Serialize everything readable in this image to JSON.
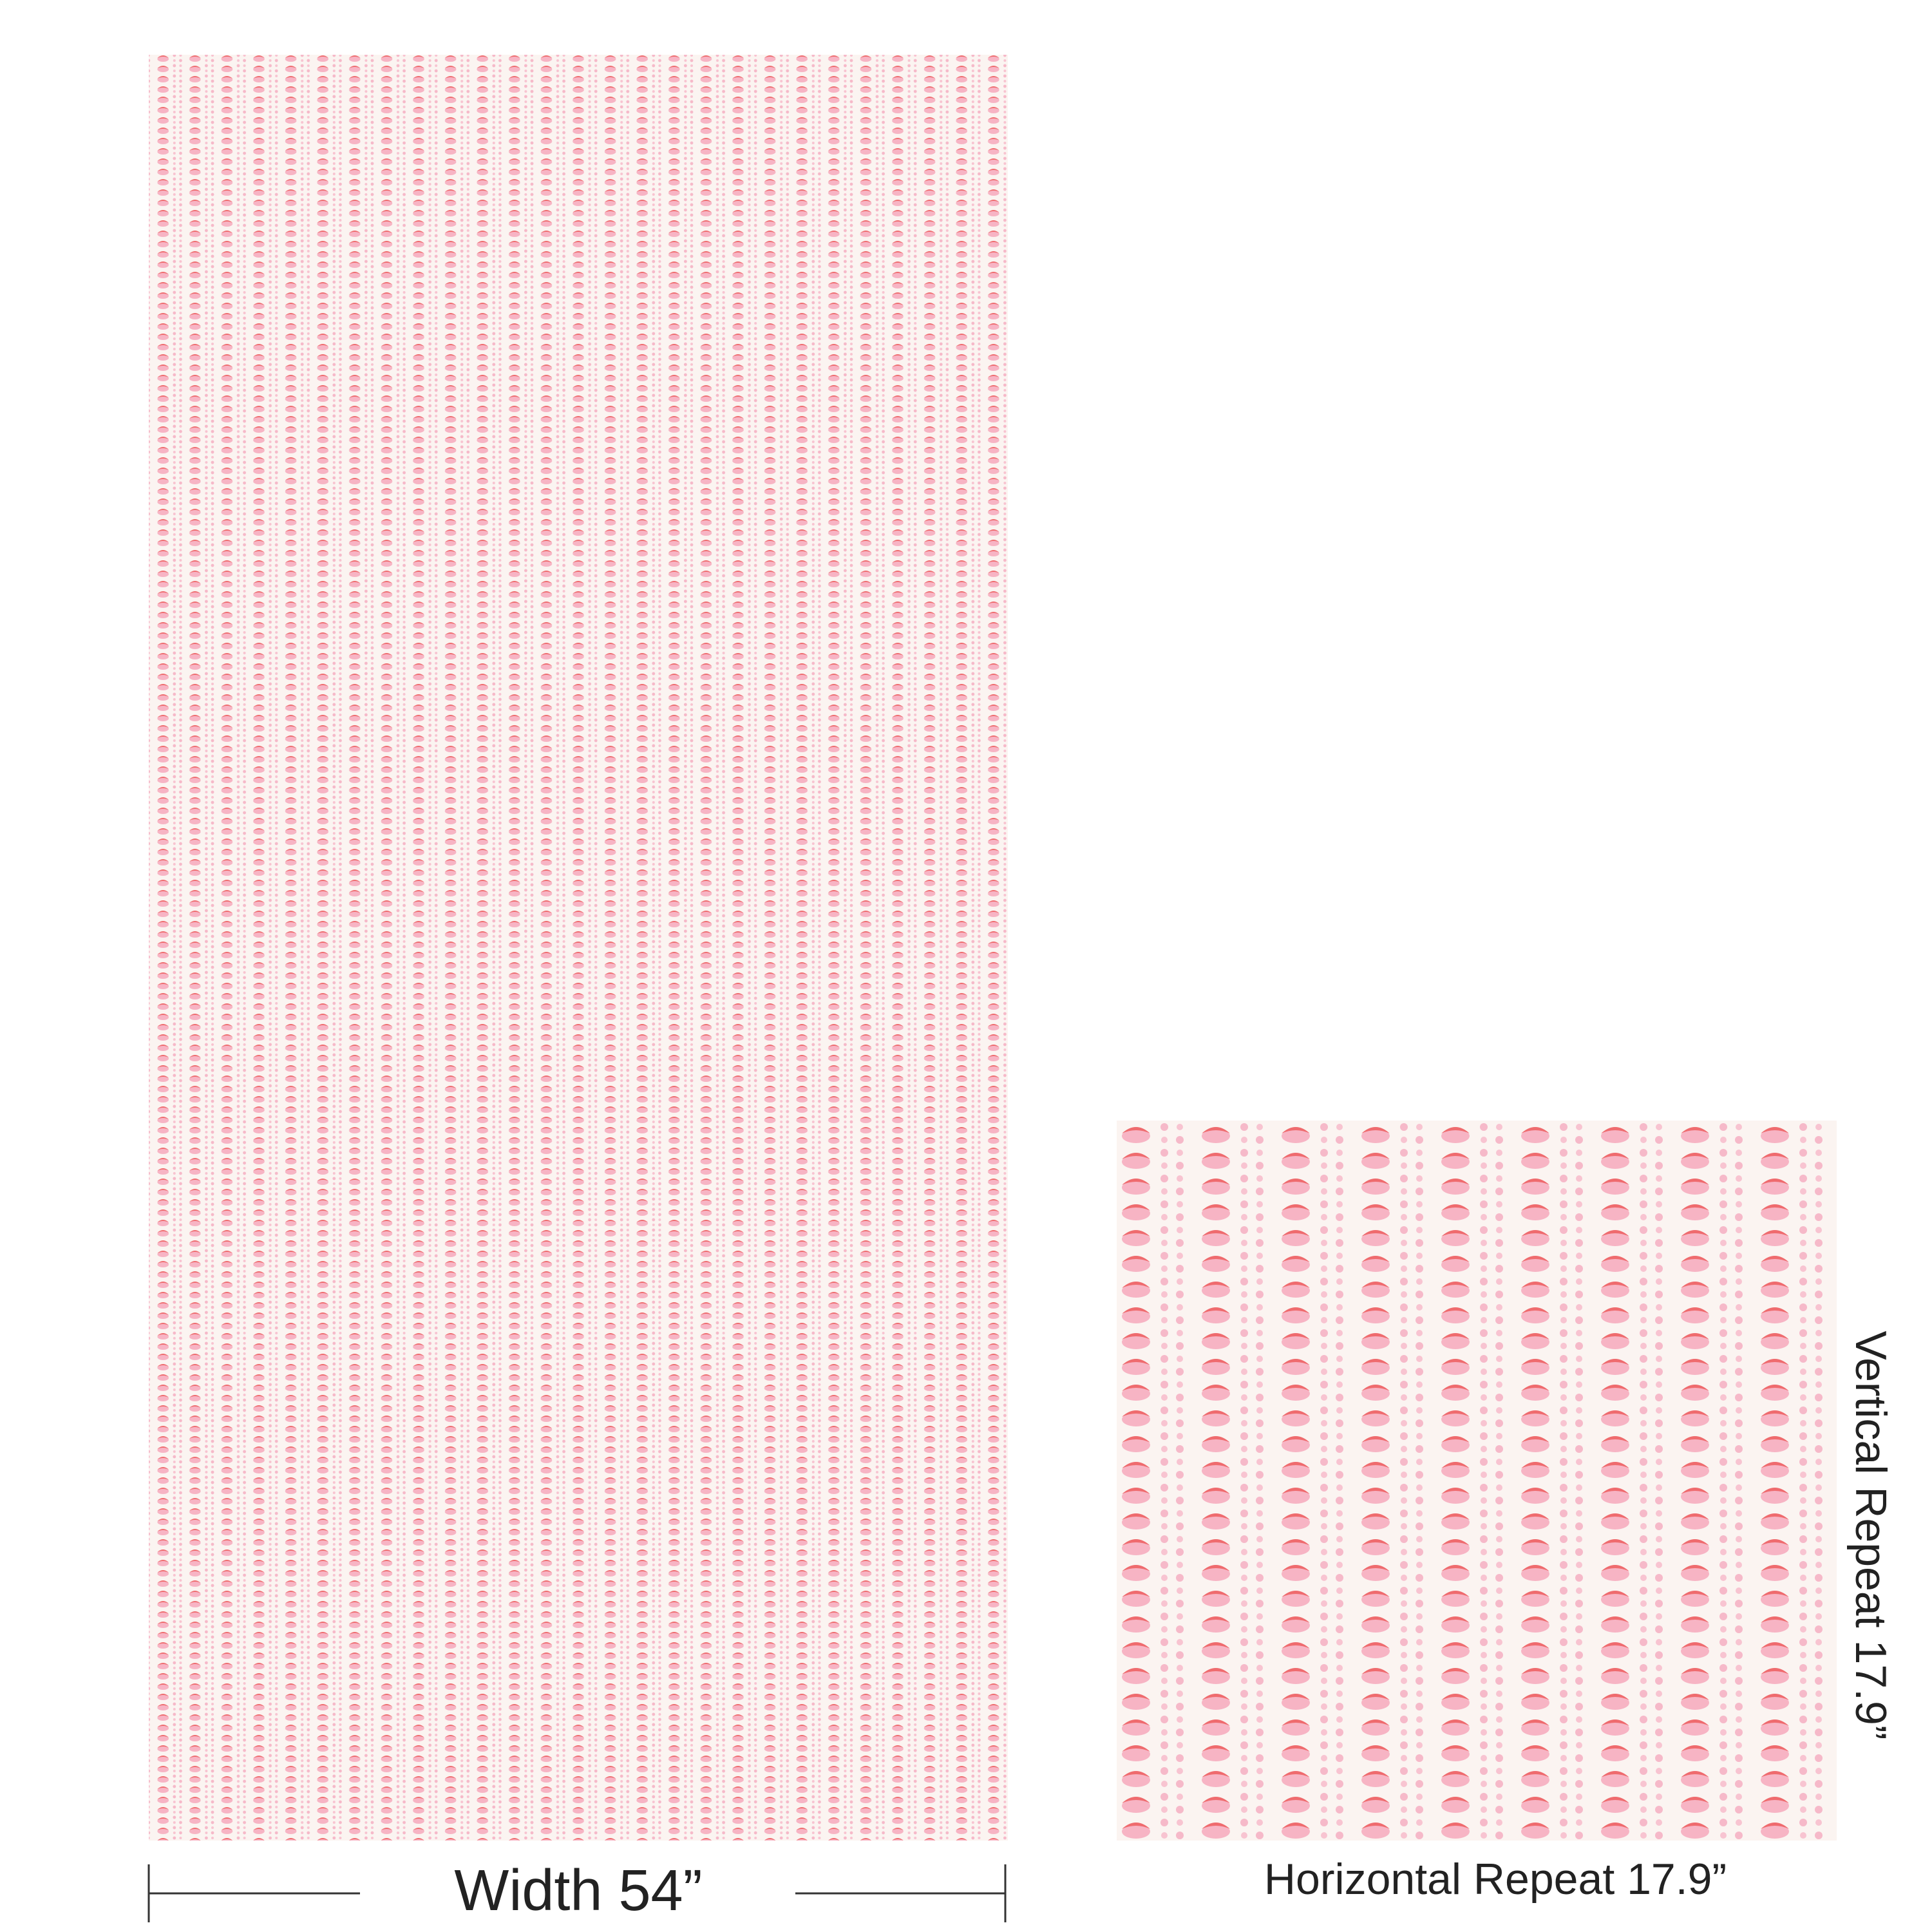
{
  "labels": {
    "width": "Width 54”",
    "horizontal_repeat": "Horizontal Repeat 17.9”",
    "vertical_repeat": "Vertical Repeat 17.9”"
  }
}
